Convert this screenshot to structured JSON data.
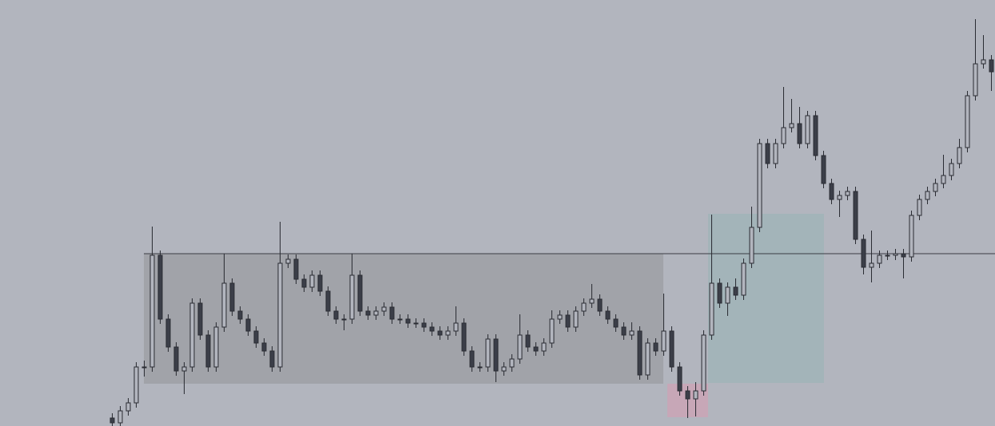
{
  "chart_data": {
    "type": "candlestick",
    "ylim": [
      0,
      534
    ],
    "up_color": "#b2b5be",
    "down_color": "#3b3e48",
    "wick_color": "#2a2c33",
    "open": [
      10,
      4,
      19,
      29,
      74,
      74,
      214,
      134,
      99,
      69,
      74,
      154,
      114,
      74,
      124,
      179,
      144,
      134,
      119,
      104,
      94,
      74,
      204,
      209,
      184,
      174,
      189,
      169,
      144,
      134,
      134,
      189,
      144,
      139,
      144,
      149,
      134,
      134,
      129,
      129,
      124,
      119,
      114,
      119,
      129,
      94,
      74,
      74,
      109,
      69,
      74,
      84,
      114,
      99,
      94,
      104,
      134,
      139,
      124,
      144,
      154,
      159,
      144,
      134,
      124,
      114,
      119,
      64,
      104,
      94,
      119,
      74,
      44,
      34,
      44,
      114,
      179,
      154,
      174,
      164,
      204,
      249,
      354,
      329,
      354,
      374,
      379,
      354,
      389,
      339,
      304,
      284,
      289,
      294,
      234,
      199,
      204,
      214,
      214,
      216,
      212,
      264,
      284,
      294,
      304,
      314,
      329,
      349,
      414,
      454,
      459
    ],
    "high": [
      16,
      25,
      35,
      80,
      82,
      250,
      220,
      140,
      105,
      80,
      160,
      160,
      120,
      130,
      216,
      185,
      150,
      140,
      125,
      110,
      100,
      256,
      215,
      215,
      190,
      195,
      195,
      175,
      150,
      140,
      216,
      195,
      150,
      150,
      155,
      155,
      140,
      140,
      135,
      135,
      130,
      125,
      125,
      150,
      135,
      100,
      80,
      115,
      115,
      80,
      90,
      140,
      120,
      105,
      110,
      145,
      145,
      145,
      150,
      160,
      178,
      165,
      150,
      140,
      130,
      130,
      125,
      110,
      110,
      166,
      125,
      80,
      50,
      55,
      120,
      265,
      185,
      180,
      185,
      210,
      275,
      360,
      360,
      360,
      425,
      410,
      400,
      395,
      395,
      345,
      310,
      295,
      300,
      300,
      240,
      245,
      220,
      220,
      222,
      222,
      270,
      290,
      300,
      310,
      340,
      335,
      360,
      420,
      510,
      490,
      465
    ],
    "low": [
      0,
      0,
      13,
      23,
      62,
      68,
      128,
      93,
      63,
      40,
      68,
      108,
      68,
      68,
      118,
      138,
      128,
      113,
      98,
      88,
      68,
      68,
      198,
      178,
      168,
      168,
      163,
      138,
      128,
      120,
      128,
      138,
      133,
      133,
      138,
      128,
      128,
      123,
      123,
      118,
      113,
      108,
      108,
      113,
      88,
      68,
      68,
      68,
      55,
      63,
      68,
      78,
      93,
      88,
      88,
      98,
      128,
      118,
      118,
      138,
      148,
      138,
      128,
      118,
      108,
      108,
      58,
      58,
      88,
      88,
      68,
      38,
      10,
      12,
      38,
      108,
      148,
      138,
      158,
      158,
      198,
      243,
      323,
      323,
      348,
      368,
      348,
      348,
      333,
      298,
      278,
      262,
      283,
      228,
      190,
      180,
      198,
      208,
      208,
      185,
      206,
      258,
      278,
      288,
      298,
      308,
      323,
      343,
      408,
      448,
      420
    ],
    "close": [
      4,
      19,
      29,
      74,
      74,
      214,
      134,
      99,
      69,
      74,
      154,
      114,
      74,
      124,
      179,
      144,
      134,
      119,
      104,
      94,
      74,
      204,
      209,
      184,
      174,
      189,
      169,
      144,
      134,
      134,
      189,
      144,
      139,
      144,
      149,
      134,
      134,
      129,
      129,
      124,
      119,
      114,
      119,
      129,
      94,
      74,
      74,
      109,
      69,
      74,
      84,
      114,
      99,
      94,
      104,
      134,
      139,
      124,
      144,
      154,
      159,
      144,
      134,
      124,
      114,
      119,
      64,
      104,
      94,
      119,
      74,
      44,
      34,
      44,
      114,
      179,
      154,
      174,
      164,
      204,
      249,
      354,
      329,
      354,
      374,
      379,
      354,
      389,
      339,
      304,
      284,
      289,
      294,
      234,
      199,
      204,
      214,
      214,
      216,
      212,
      264,
      284,
      294,
      304,
      314,
      329,
      349,
      414,
      454,
      459,
      444
    ]
  }
}
